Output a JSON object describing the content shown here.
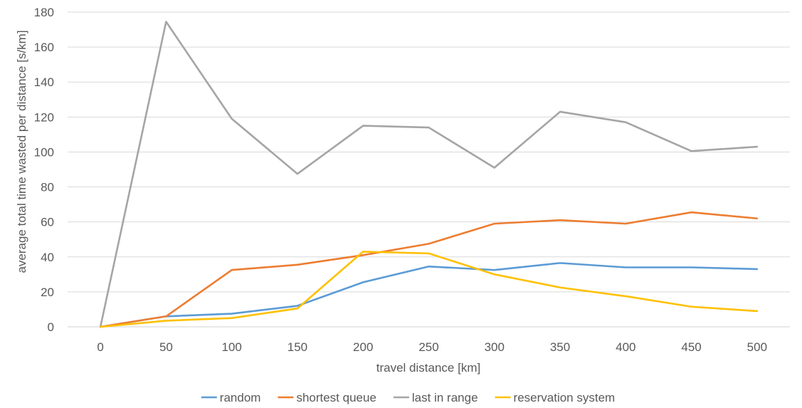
{
  "chart_data": {
    "type": "line",
    "title": "",
    "xlabel": "travel distance [km]",
    "ylabel": "average total time wasted per distance [s/km]",
    "x": [
      0,
      50,
      100,
      150,
      200,
      250,
      300,
      350,
      400,
      450,
      500
    ],
    "ylim": [
      0,
      180
    ],
    "yticks": [
      0,
      20,
      40,
      60,
      80,
      100,
      120,
      140,
      160,
      180
    ],
    "grid": true,
    "legend_position": "bottom",
    "series": [
      {
        "name": "random",
        "color": "#5b9bd5",
        "values": [
          0,
          6,
          7.5,
          12,
          25.5,
          34.5,
          32.5,
          36.5,
          34,
          34,
          33
        ]
      },
      {
        "name": "shortest queue",
        "color": "#ed7d31",
        "values": [
          0,
          6,
          32.5,
          35.5,
          41,
          47.5,
          59,
          61,
          59,
          65.5,
          62
        ]
      },
      {
        "name": "last in range",
        "color": "#a5a5a5",
        "values": [
          0,
          174.5,
          119,
          87.5,
          115,
          114,
          91,
          123,
          117,
          100.5,
          103
        ]
      },
      {
        "name": "reservation system",
        "color": "#ffc000",
        "values": [
          0,
          3.5,
          5,
          10.5,
          43,
          42,
          30,
          22.5,
          17.5,
          11.5,
          9
        ]
      }
    ]
  }
}
